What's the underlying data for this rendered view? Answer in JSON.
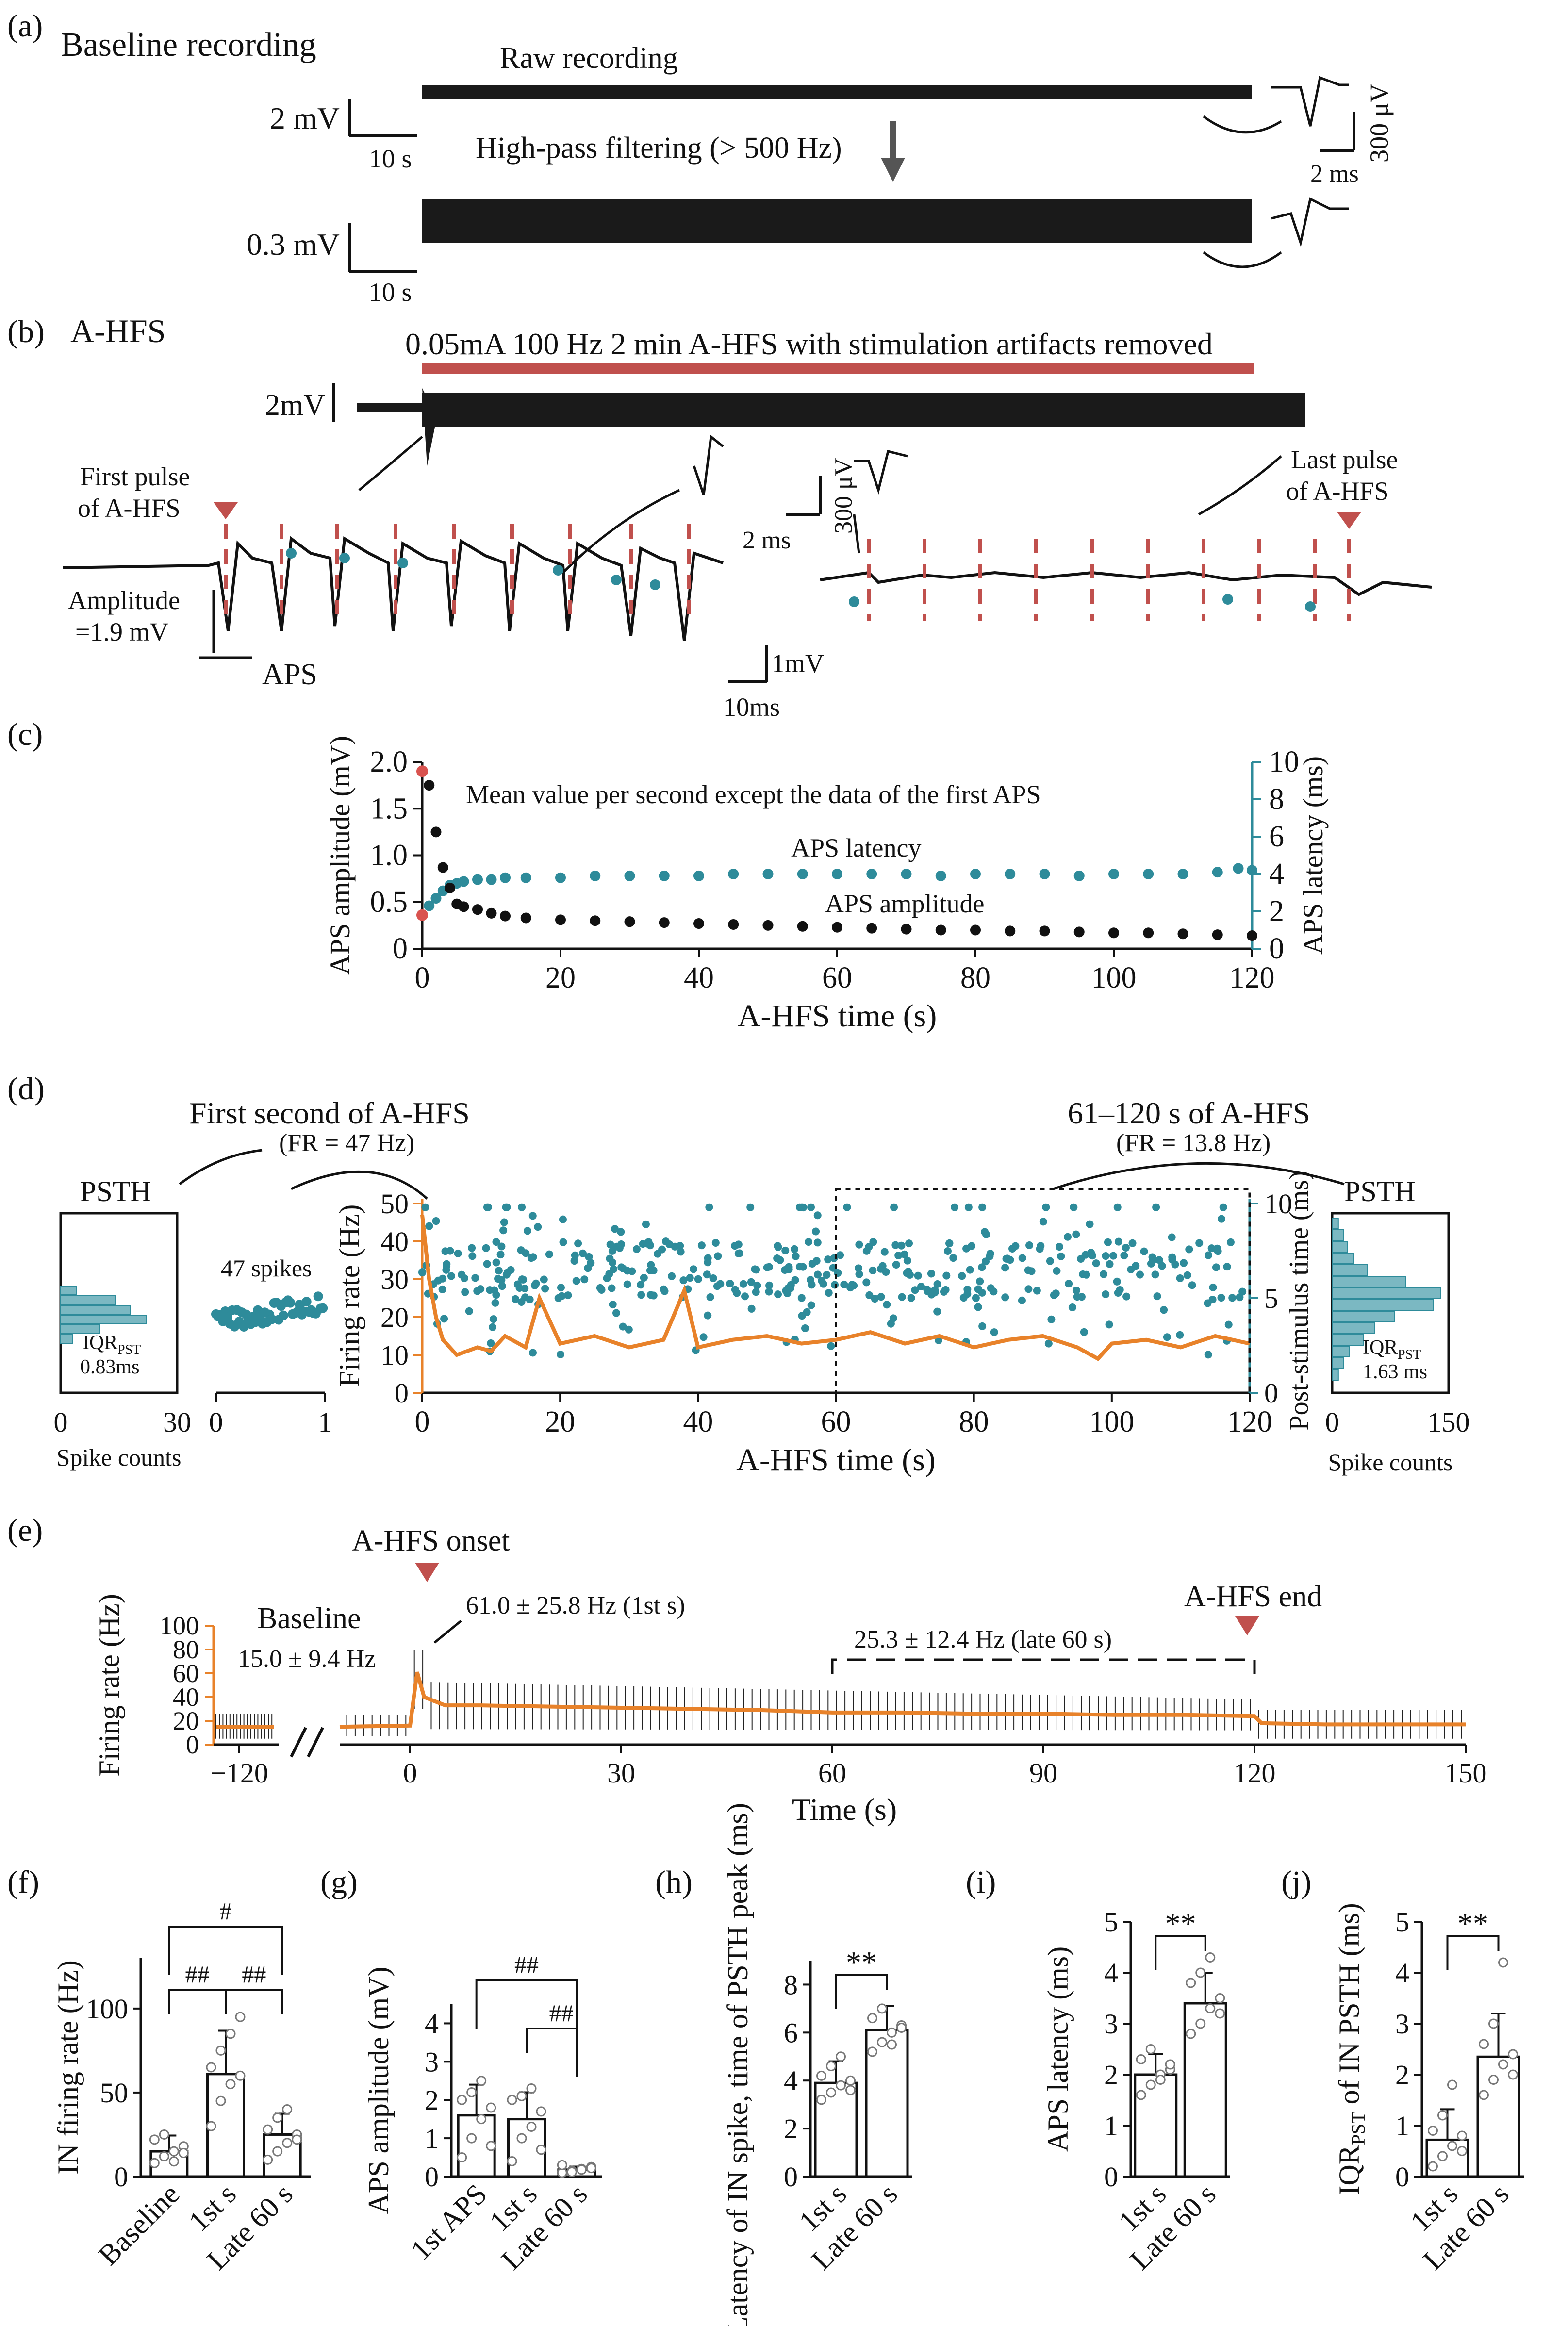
{
  "panels": {
    "a": {
      "letter": "(a)",
      "title": "Baseline recording",
      "raw_label": "Raw recording",
      "filter_label": "High-pass filtering (> 500 Hz)",
      "scale_raw": "2 mV",
      "scale_raw_t": "10 s",
      "scale_filt": "0.3 mV",
      "scale_filt_t": "10 s",
      "inset_v": "300 μV",
      "inset_t": "2 ms"
    },
    "b": {
      "letter": "(b)",
      "title": "A-HFS",
      "banner": "0.05mA 100 Hz 2 min A-HFS with stimulation artifacts removed",
      "scale_v": "2mV",
      "first_pulse": [
        "First pulse",
        "of A-HFS"
      ],
      "last_pulse": [
        "Last pulse",
        "of A-HFS"
      ],
      "amplitude": [
        "Amplitude",
        "=1.9 mV"
      ],
      "aps": "APS",
      "inset_v": "300 μV",
      "inset_t": "2 ms",
      "scale_v2": "1mV",
      "scale_t2": "10ms"
    },
    "c": {
      "letter": "(c)"
    },
    "d": {
      "letter": "(d)",
      "first_title": "First second of A-HFS",
      "first_fr": "(FR = 47 Hz)",
      "late_title": "61–120 s of A-HFS",
      "late_fr": "(FR = 13.8 Hz)",
      "psth": "PSTH",
      "spikes47": "47 spikes",
      "iqr_left": [
        "IQR",
        "PST",
        "0.83ms"
      ],
      "iqr_right": [
        "IQR",
        "PST",
        "1.63 ms"
      ],
      "spike_counts": "Spike counts",
      "left_ticks": [
        "0",
        "30"
      ],
      "right_ticks": [
        "0",
        "150"
      ],
      "mini_ticks": [
        "0",
        "1"
      ]
    },
    "e": {
      "letter": "(e)",
      "onset": "A-HFS onset",
      "end": "A-HFS end",
      "baseline": "Baseline",
      "baseline_val": "15.0 ± 9.4 Hz",
      "first_s": "61.0 ± 25.8 Hz (1st s)",
      "late": "25.3 ± 12.4 Hz (late 60 s)"
    },
    "f": {
      "letter": "(f)"
    },
    "g": {
      "letter": "(g)"
    },
    "h": {
      "letter": "(h)"
    },
    "i": {
      "letter": "(i)"
    },
    "j": {
      "letter": "(j)"
    }
  },
  "chart_data": [
    {
      "id": "c",
      "type": "scatter",
      "title": "Mean value per second except the data of the first APS",
      "xlabel": "A-HFS time (s)",
      "ylabel": "APS amplitude (mV)",
      "y2label": "APS latency (ms)",
      "xlim": [
        0,
        120
      ],
      "ylim": [
        0,
        2
      ],
      "y2lim": [
        0,
        10
      ],
      "xticks": [
        0,
        20,
        40,
        60,
        80,
        100,
        120
      ],
      "yticks": [
        0,
        0.5,
        1.0,
        1.5,
        2.0
      ],
      "yticklabels": [
        "0",
        "0.5",
        "1.0",
        "1.5",
        "2.0"
      ],
      "y2ticks": [
        0,
        2,
        4,
        6,
        8,
        10
      ],
      "colors": {
        "amplitude": "#111111",
        "latency": "#2e8b9a",
        "first": "#d9534f"
      },
      "series": [
        {
          "name": "APS latency",
          "axis": "right",
          "first": [
            0,
            1.8
          ],
          "x": [
            1,
            2,
            3,
            4,
            5,
            6,
            8,
            10,
            12,
            15,
            20,
            25,
            30,
            35,
            40,
            45,
            50,
            55,
            60,
            65,
            70,
            75,
            80,
            85,
            90,
            95,
            100,
            105,
            110,
            115,
            118,
            120
          ],
          "values": [
            2.3,
            2.7,
            3.1,
            3.4,
            3.5,
            3.6,
            3.7,
            3.7,
            3.8,
            3.8,
            3.8,
            3.9,
            3.9,
            3.9,
            3.9,
            4.0,
            4.0,
            4.0,
            4.0,
            4.0,
            4.0,
            3.9,
            4.0,
            4.0,
            4.0,
            3.9,
            4.0,
            4.0,
            4.0,
            4.1,
            4.3,
            4.2
          ]
        },
        {
          "name": "APS amplitude",
          "axis": "left",
          "first": [
            0,
            1.9
          ],
          "x": [
            1,
            2,
            3,
            4,
            5,
            6,
            8,
            10,
            12,
            15,
            20,
            25,
            30,
            35,
            40,
            45,
            50,
            55,
            60,
            65,
            70,
            75,
            80,
            85,
            90,
            95,
            100,
            105,
            110,
            115,
            120
          ],
          "values": [
            1.75,
            1.25,
            0.87,
            0.65,
            0.48,
            0.45,
            0.42,
            0.38,
            0.35,
            0.33,
            0.31,
            0.3,
            0.29,
            0.28,
            0.27,
            0.26,
            0.25,
            0.24,
            0.23,
            0.22,
            0.21,
            0.2,
            0.2,
            0.19,
            0.19,
            0.18,
            0.17,
            0.17,
            0.16,
            0.15,
            0.14
          ]
        }
      ]
    },
    {
      "id": "d",
      "type": "line",
      "xlabel": "A-HFS time (s)",
      "ylabel": "Firing rate (Hz)",
      "y2label": "Post-stimulus time (ms)",
      "xlim": [
        0,
        120
      ],
      "ylim": [
        0,
        50
      ],
      "y2lim": [
        0,
        10
      ],
      "xticks": [
        0,
        20,
        40,
        60,
        80,
        100,
        120
      ],
      "yticks": [
        0,
        10,
        20,
        30,
        40,
        50
      ],
      "y2ticks": [
        0,
        5,
        10
      ],
      "colors": {
        "rate": "#e8822a",
        "spikes": "#2e8b9a"
      },
      "series": [
        {
          "name": "Firing rate",
          "x": [
            0,
            1,
            2,
            3,
            5,
            8,
            10,
            12,
            15,
            17,
            20,
            25,
            30,
            35,
            38,
            40,
            45,
            50,
            55,
            60,
            65,
            70,
            75,
            80,
            85,
            90,
            95,
            98,
            100,
            105,
            110,
            115,
            120
          ],
          "values": [
            47,
            30,
            20,
            14,
            10,
            12,
            11,
            15,
            12,
            25,
            13,
            15,
            12,
            14,
            27,
            12,
            14,
            15,
            13,
            14,
            16,
            13,
            15,
            12,
            14,
            15,
            12,
            9,
            13,
            14,
            12,
            15,
            13
          ]
        }
      ],
      "psth_left": {
        "xlabel": "Spike counts",
        "xlim": [
          0,
          30
        ],
        "bins_ms": [
          3.5,
          4.0,
          4.5,
          5.0,
          5.5,
          6.0
        ],
        "counts": [
          4,
          14,
          18,
          22,
          10,
          3
        ]
      },
      "psth_right": {
        "xlabel": "Spike counts",
        "xlim": [
          0,
          150
        ],
        "bins_ms": [
          3.0,
          3.5,
          4.0,
          4.5,
          5.0,
          5.5,
          6.0,
          6.5,
          7.0,
          7.5,
          8.0,
          8.5,
          9.0,
          9.5
        ],
        "counts": [
          8,
          15,
          20,
          28,
          45,
          95,
          140,
          130,
          80,
          55,
          40,
          22,
          15,
          8
        ]
      }
    },
    {
      "id": "e",
      "type": "line",
      "xlabel": "Time (s)",
      "ylabel": "Firing rate (Hz)",
      "ylim": [
        0,
        100
      ],
      "yticks": [
        0,
        20,
        40,
        60,
        80,
        100
      ],
      "xticks": [
        -120,
        0,
        30,
        60,
        90,
        120,
        150
      ],
      "xticklabels": [
        "−120",
        "0",
        "30",
        "60",
        "90",
        "120",
        "150"
      ],
      "baseline_segment": {
        "x": [
          -128,
          -108
        ],
        "mean": 15,
        "sd": 9.4
      },
      "series": [
        {
          "name": "Mean firing rate",
          "x": [
            -10,
            0,
            1,
            2,
            5,
            10,
            20,
            30,
            40,
            50,
            60,
            70,
            80,
            90,
            100,
            110,
            120,
            121,
            130,
            140,
            150
          ],
          "values": [
            15,
            16,
            61,
            40,
            33,
            33,
            32,
            31,
            30,
            29,
            27,
            27,
            26,
            26,
            25,
            25,
            24,
            18,
            17,
            17,
            17
          ]
        }
      ]
    },
    {
      "id": "f",
      "type": "bar",
      "ylabel": "IN firing rate (Hz)",
      "categories": [
        "Baseline",
        "1st s",
        "Late 60 s"
      ],
      "values": [
        15,
        61,
        25
      ],
      "errors": [
        9.4,
        25.8,
        12.4
      ],
      "ylim": [
        0,
        130
      ],
      "yticks": [
        0,
        50,
        100
      ],
      "points": [
        [
          8,
          12,
          15,
          18,
          22,
          25,
          9,
          14
        ],
        [
          30,
          45,
          55,
          60,
          65,
          75,
          85,
          95
        ],
        [
          10,
          15,
          20,
          25,
          28,
          35,
          40,
          22
        ]
      ],
      "sig": [
        "#",
        "##",
        "##"
      ]
    },
    {
      "id": "g",
      "type": "bar",
      "ylabel": "APS amplitude (mV)",
      "categories": [
        "1st APS",
        "1st s",
        "Late 60 s"
      ],
      "values": [
        1.6,
        1.5,
        0.18
      ],
      "errors": [
        0.8,
        0.7,
        0.08
      ],
      "ylim": [
        0,
        4.5
      ],
      "yticks": [
        0,
        1,
        2,
        3,
        4
      ],
      "points": [
        [
          0.5,
          1.0,
          1.5,
          1.8,
          2.0,
          2.2,
          2.5,
          0.8
        ],
        [
          0.4,
          1.0,
          1.3,
          1.7,
          2.0,
          2.1,
          2.3,
          0.7
        ],
        [
          0.1,
          0.15,
          0.2,
          0.25,
          0.3,
          0.12,
          0.18,
          0.22
        ]
      ],
      "sig": [
        "##",
        "##"
      ]
    },
    {
      "id": "h",
      "type": "bar",
      "ylabel": "Latency of IN spike, time of PSTH peak (ms)",
      "categories": [
        "1st s",
        "Late 60 s"
      ],
      "values": [
        3.9,
        6.1
      ],
      "errors": [
        0.9,
        1.0
      ],
      "ylim": [
        0,
        9
      ],
      "yticks": [
        0,
        2,
        4,
        6,
        8
      ],
      "points": [
        [
          3.2,
          3.5,
          3.8,
          4.0,
          4.2,
          4.6,
          5.0,
          3.6
        ],
        [
          5.2,
          5.6,
          6.0,
          6.3,
          6.6,
          7.0,
          5.5,
          6.2
        ]
      ],
      "sig": [
        "**"
      ]
    },
    {
      "id": "i",
      "type": "bar",
      "ylabel": "APS latency (ms)",
      "categories": [
        "1st s",
        "Late 60 s"
      ],
      "values": [
        2.0,
        3.4
      ],
      "errors": [
        0.4,
        0.6
      ],
      "ylim": [
        0,
        5
      ],
      "yticks": [
        0,
        1,
        2,
        3,
        4,
        5
      ],
      "points": [
        [
          1.6,
          1.8,
          2.0,
          2.1,
          2.3,
          2.5,
          1.9,
          2.2
        ],
        [
          2.8,
          3.0,
          3.3,
          3.5,
          3.8,
          4.0,
          4.3,
          3.2
        ]
      ],
      "sig": [
        "**"
      ]
    },
    {
      "id": "j",
      "type": "bar",
      "ylabel": "IQR",
      "ylabel_sub": "PST",
      "ylabel_rest": " of IN PSTH (ms)",
      "categories": [
        "1st s",
        "Late 60 s"
      ],
      "values": [
        0.72,
        2.35
      ],
      "errors": [
        0.6,
        0.85
      ],
      "ylim": [
        0,
        5
      ],
      "yticks": [
        0,
        1,
        2,
        3,
        4,
        5
      ],
      "points": [
        [
          0.2,
          0.4,
          0.6,
          0.8,
          0.9,
          1.2,
          1.8,
          0.5
        ],
        [
          1.6,
          1.9,
          2.2,
          2.4,
          2.6,
          3.0,
          4.2,
          2.0
        ]
      ],
      "sig": [
        "**"
      ]
    }
  ]
}
